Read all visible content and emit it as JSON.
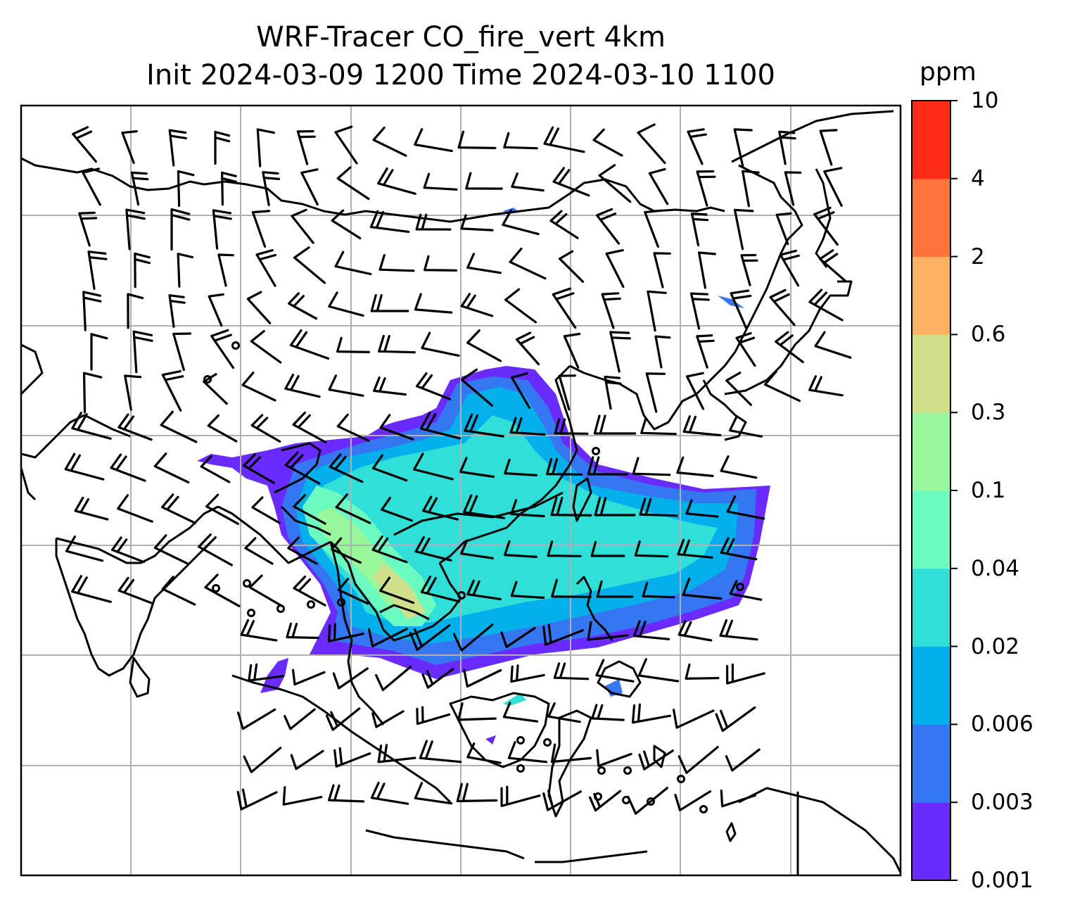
{
  "title": {
    "line1": "WRF-Tracer CO_fire_vert 4km",
    "line2": "Init 2024-03-09 1200 Time 2024-03-10 1100"
  },
  "colorbar": {
    "units": "ppm",
    "ticks": [
      "0.001",
      "0.003",
      "0.006",
      "0.02",
      "0.04",
      "0.1",
      "0.3",
      "0.6",
      "2",
      "4",
      "10"
    ],
    "colors": [
      "#6a2bff",
      "#3577f2",
      "#04b0ec",
      "#2fdfd8",
      "#6bfbc0",
      "#98f79a",
      "#cfe08a",
      "#fdb263",
      "#ff743c",
      "#ff2b18"
    ]
  },
  "map": {
    "region": "Southeast Asia / East Asia",
    "overlay": "wind barbs and coastlines with gridlines",
    "grid": true
  }
}
